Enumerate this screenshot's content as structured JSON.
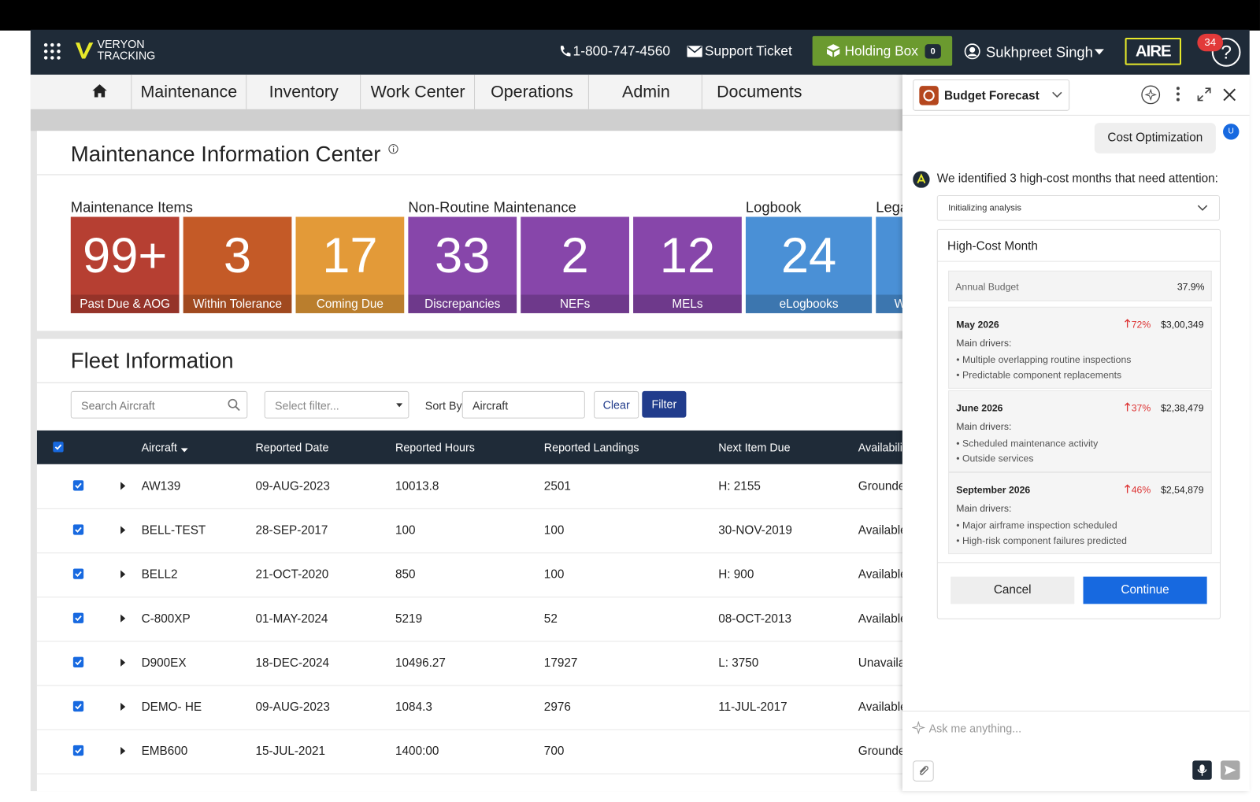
{
  "header": {
    "brand": [
      "VERYON",
      "TRACKING"
    ],
    "phone": "1-800-747-4560",
    "support_ticket": "Support Ticket",
    "holding_box": {
      "label": "Holding Box",
      "count": "0"
    },
    "user": "Sukhpreet Singh",
    "aire": "AIRE",
    "notifications": "34"
  },
  "nav": {
    "tabs": [
      "Maintenance",
      "Inventory",
      "Work Center",
      "Operations",
      "Admin",
      "Documents"
    ]
  },
  "info_center": {
    "title": "Maintenance Information Center",
    "groups": [
      {
        "title": "Maintenance Items",
        "tiles": [
          {
            "value": "99+",
            "label": "Past Due & AOG"
          },
          {
            "value": "3",
            "label": "Within Tolerance"
          },
          {
            "value": "17",
            "label": "Coming Due"
          }
        ]
      },
      {
        "title": "Non-Routine Maintenance",
        "tiles": [
          {
            "value": "33",
            "label": "Discrepancies"
          },
          {
            "value": "2",
            "label": "NEFs"
          },
          {
            "value": "12",
            "label": "MELs"
          }
        ]
      },
      {
        "title": "Logbook",
        "tiles": [
          {
            "value": "24",
            "label": "eLogbooks"
          }
        ]
      },
      {
        "title": "Lega",
        "tiles": [
          {
            "label": "W"
          }
        ]
      }
    ]
  },
  "fleet": {
    "title": "Fleet Information",
    "filters": {
      "search_placeholder": "Search Aircraft",
      "select_placeholder": "Select filter...",
      "sort_by": "Sort By",
      "sort_value": "Aircraft",
      "clear": "Clear",
      "filter": "Filter"
    },
    "table": {
      "columns": [
        "Aircraft",
        "Reported Date",
        "Reported Hours",
        "Reported Landings",
        "Next Item Due",
        "Availabili"
      ],
      "rows": [
        [
          "AW139",
          "09-AUG-2023",
          "10013.8",
          "2501",
          "H: 2155",
          "Grounde"
        ],
        [
          "BELL-TEST",
          "28-SEP-2017",
          "100",
          "100",
          "30-NOV-2019",
          "Available"
        ],
        [
          "BELL2",
          "21-OCT-2020",
          "850",
          "100",
          "H: 900",
          "Available"
        ],
        [
          "C-800XP",
          "01-MAY-2024",
          "5219",
          "52",
          "08-OCT-2013",
          "Available"
        ],
        [
          "D900EX",
          "18-DEC-2024",
          "10496.27",
          "17927",
          "L: 3750",
          "Unavaila"
        ],
        [
          "DEMO- HE",
          "09-AUG-2023",
          "1084.3",
          "2976",
          "11-JUL-2017",
          "Available"
        ],
        [
          "EMB600",
          "15-JUL-2021",
          "1400:00",
          "700",
          null,
          "Grounde"
        ]
      ]
    }
  },
  "assistant": {
    "title": "Budget Forecast",
    "user_message": "Cost Optimization",
    "user_avatar": "U",
    "reply": "We identified 3 high-cost months that need attention:",
    "status": "Initializing analysis",
    "card": {
      "title": "High-Cost Month",
      "annual_budget": {
        "label": "Annual Budget",
        "value": "37.9%"
      },
      "months": [
        {
          "month": "May 2026",
          "change": "72%",
          "amount": "$3,00,349",
          "drivers_label": "Main drivers:",
          "drivers": [
            "Multiple overlapping routine inspections",
            "Predictable component replacements"
          ]
        },
        {
          "month": "June 2026",
          "change": "37%",
          "amount": "$2,38,479",
          "drivers_label": "Main drivers:",
          "drivers": [
            "Scheduled maintenance activity",
            "Outside services"
          ]
        },
        {
          "month": "September 2026",
          "change": "46%",
          "amount": "$2,54,879",
          "drivers_label": "Main drivers:",
          "drivers": [
            "Major airframe inspection scheduled",
            "High-risk component failures predicted"
          ]
        }
      ]
    },
    "cancel": "Cancel",
    "continue": "Continue",
    "input_placeholder": "Ask me anything..."
  }
}
